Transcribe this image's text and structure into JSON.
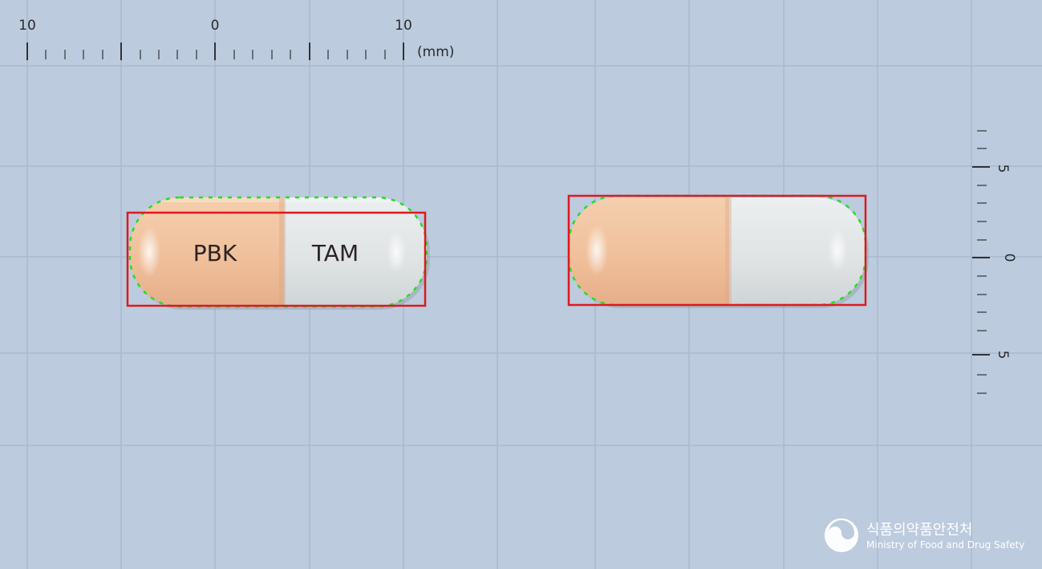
{
  "top_ruler": {
    "labels": [
      "10",
      "0",
      "10"
    ],
    "unit": "(mm)"
  },
  "side_ruler": {
    "labels": [
      "5",
      "0",
      "5"
    ]
  },
  "capsule_front": {
    "left_imprint": "PBK",
    "right_imprint": "TAM",
    "cap_color": "#f2c4a0",
    "body_color": "#dfe3e4"
  },
  "capsule_back": {
    "cap_color": "#f2c4a0",
    "body_color": "#dfe3e4"
  },
  "colors": {
    "background": "#bccbde",
    "grid": "#a7b7cc",
    "outline_box": "#e0181e",
    "contour_dots": "#22e01e"
  },
  "logo": {
    "korean": "식품의약품안전처",
    "english": "Ministry of Food and Drug Safety"
  }
}
